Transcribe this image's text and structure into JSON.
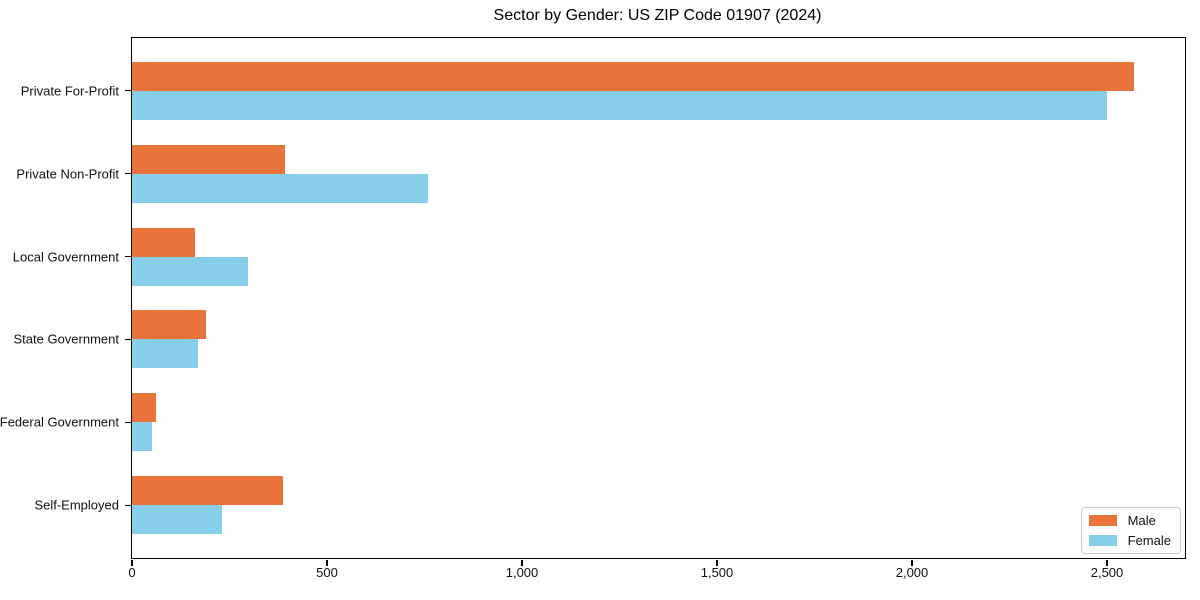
{
  "title": "Sector by Gender: US ZIP Code 01907 (2024)",
  "chart_data": {
    "type": "bar",
    "orientation": "horizontal",
    "title": "Sector by Gender: US ZIP Code 01907 (2024)",
    "categories": [
      "Private For-Profit",
      "Private Non-Profit",
      "Local Government",
      "State Government",
      "Federal Government",
      "Self-Employed"
    ],
    "series": [
      {
        "name": "Male",
        "color": "#e8743b",
        "values": [
          2570,
          392,
          162,
          190,
          62,
          386
        ]
      },
      {
        "name": "Female",
        "color": "#87ceeb",
        "values": [
          2500,
          758,
          298,
          168,
          50,
          230
        ]
      }
    ],
    "xlabel": "",
    "ylabel": "",
    "xlim": [
      0,
      2700
    ],
    "xticks": {
      "values": [
        0,
        500,
        1000,
        1500,
        2000,
        2500
      ],
      "labels": [
        "0",
        "500",
        "1,000",
        "1,500",
        "2,000",
        "2,500"
      ]
    },
    "grid": false,
    "legend": {
      "position": "lower right",
      "entries": [
        "Male",
        "Female"
      ]
    },
    "colors": {
      "male": "#e8743b",
      "female": "#87ceeb",
      "spine": "#000000",
      "background": "#ffffff"
    }
  }
}
